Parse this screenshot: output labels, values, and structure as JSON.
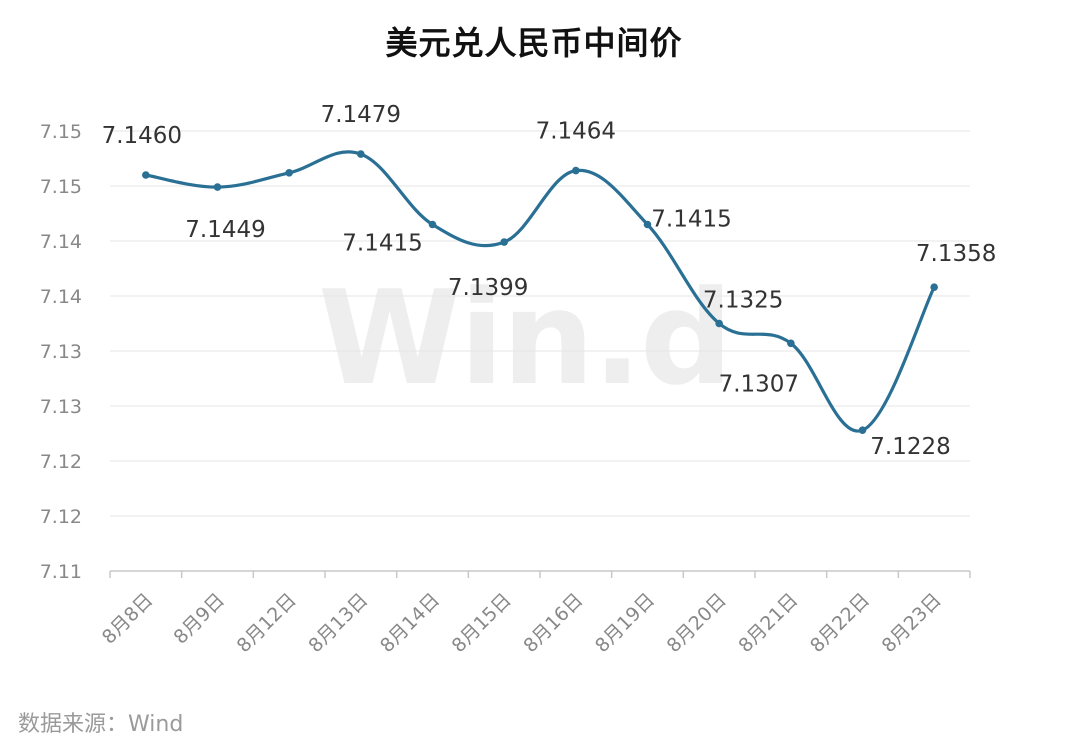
{
  "chart_title": "美元兑人民币中间价",
  "source_note": "数据来源：Wind",
  "watermark_text": "Win.d",
  "chart_data": {
    "type": "line",
    "title": "美元兑人民币中间价",
    "xlabel": "",
    "ylabel": "",
    "categories": [
      "8月8日",
      "8月9日",
      "8月12日",
      "8月13日",
      "8月14日",
      "8月15日",
      "8月16日",
      "8月19日",
      "8月20日",
      "8月21日",
      "8月22日",
      "8月23日"
    ],
    "series": [
      {
        "values": [
          7.146,
          7.1449,
          7.1462,
          7.1479,
          7.1415,
          7.1399,
          7.1464,
          7.1415,
          7.1325,
          7.1307,
          7.1228,
          7.1358
        ],
        "color": "#2a7095"
      }
    ],
    "data_labels": [
      "7.1460",
      "7.1449",
      "",
      "7.1479",
      "7.1415",
      "7.1399",
      "7.1464",
      "7.1415",
      "7.1325",
      "7.1307",
      "7.1228",
      "7.1358"
    ],
    "ylim": [
      7.11,
      7.15
    ],
    "yticks": [
      {
        "value": 7.11,
        "label": "7.11"
      },
      {
        "value": 7.115,
        "label": "7.12"
      },
      {
        "value": 7.12,
        "label": "7.12"
      },
      {
        "value": 7.125,
        "label": "7.13"
      },
      {
        "value": 7.13,
        "label": "7.13"
      },
      {
        "value": 7.135,
        "label": "7.14"
      },
      {
        "value": 7.14,
        "label": "7.14"
      },
      {
        "value": 7.145,
        "label": "7.15"
      },
      {
        "value": 7.15,
        "label": "7.15"
      }
    ],
    "grid": true,
    "legend": "none",
    "line_color": "#2a7095",
    "grid_color": "#e6e6e6",
    "axis_color": "#c8c8c8"
  }
}
